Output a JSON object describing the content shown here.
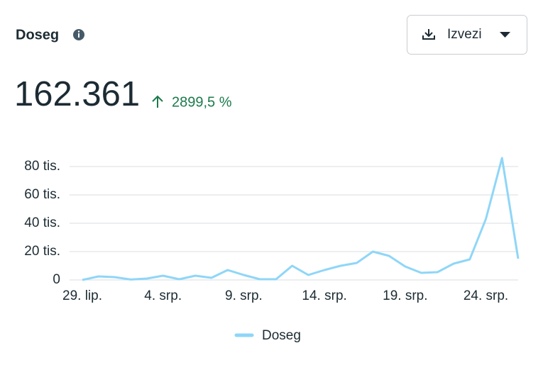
{
  "header": {
    "title": "Doseg",
    "export_label": "Izvezi",
    "total": "162.361",
    "change": "2899,5 %"
  },
  "chart_data": {
    "type": "line",
    "categories": [
      "29. lip.",
      null,
      null,
      null,
      null,
      "4. srp.",
      null,
      null,
      null,
      null,
      "9. srp.",
      null,
      null,
      null,
      null,
      "14. srp.",
      null,
      null,
      null,
      null,
      "19. srp.",
      null,
      null,
      null,
      null,
      "24. srp.",
      null,
      null
    ],
    "series": [
      {
        "name": "Doseg",
        "color": "#8fd6f8",
        "values": [
          0,
          2500,
          2000,
          300,
          1000,
          3000,
          500,
          3000,
          1500,
          7000,
          3500,
          500,
          500,
          10000,
          3500,
          7000,
          10000,
          12000,
          20000,
          17000,
          9500,
          5000,
          5500,
          11500,
          14500,
          43000,
          86000,
          15000
        ]
      }
    ],
    "ylim": [
      0,
      90000
    ],
    "yticks": [
      0,
      {
        "value": 20000,
        "label": "20 tis."
      },
      {
        "value": 40000,
        "label": "40 tis."
      },
      {
        "value": 60000,
        "label": "60 tis."
      },
      {
        "value": 80000,
        "label": "80 tis."
      }
    ],
    "grid": true
  }
}
